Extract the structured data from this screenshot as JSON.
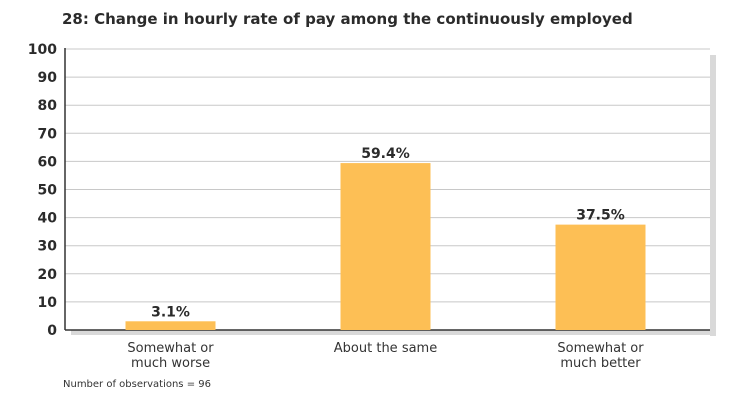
{
  "title": "28: Change in hourly rate of pay among the continuously employed",
  "note": "Number of observations = 96",
  "colors": {
    "bar": "#FDBF55",
    "grid": "#c8c8c8",
    "axis": "#333333",
    "shadow": "#d9d9d9"
  },
  "chart_data": {
    "type": "bar",
    "categories": [
      [
        "Somewhat or",
        "much worse"
      ],
      [
        "About the same"
      ],
      [
        "Somewhat or",
        "much better"
      ]
    ],
    "values": [
      3.1,
      59.4,
      37.5
    ],
    "data_labels": [
      "3.1%",
      "59.4%",
      "37.5%"
    ],
    "title": "28: Change in hourly rate of pay among the continuously employed",
    "xlabel": "",
    "ylabel": "",
    "ylim": [
      0,
      100
    ],
    "yticks": [
      0,
      10,
      20,
      30,
      40,
      50,
      60,
      70,
      80,
      90,
      100
    ],
    "grid": true,
    "legend": "none"
  }
}
